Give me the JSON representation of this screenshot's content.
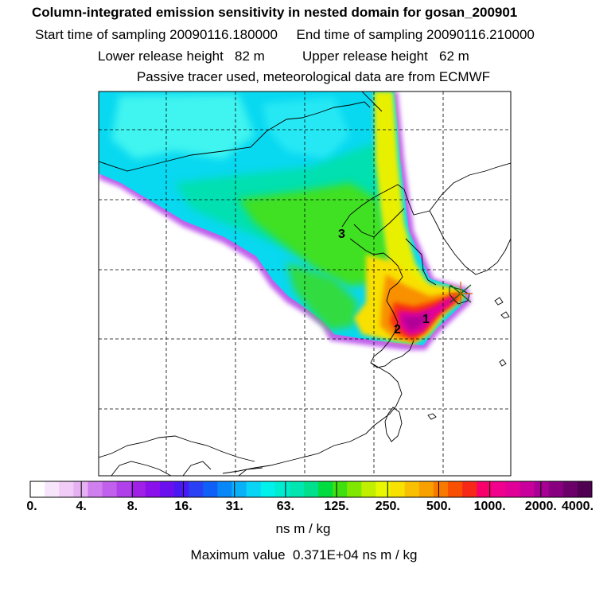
{
  "header": {
    "title": "Column-integrated emission sensitivity in nested domain for gosan_200901",
    "start_time": "Start time of sampling 20090116.180000     End time of sampling 20090116.210000",
    "release_height": "Lower release height   82 m          Upper release height   62 m",
    "tracer_info": "Passive tracer used, meteorological data are from ECMWF"
  },
  "map": {
    "labels": [
      "1",
      "2",
      "3"
    ],
    "grid": true,
    "release_marker": "star-marker"
  },
  "colorbar": {
    "colors": [
      "#ffffff",
      "#f7e6fb",
      "#f0ccf7",
      "#e6b1f3",
      "#cf7fee",
      "#c060ec",
      "#b040ea",
      "#a020e8",
      "#8a10ec",
      "#6a10ef",
      "#4a18f2",
      "#2a40f5",
      "#1060f7",
      "#0888f8",
      "#08b0f8",
      "#08d4f5",
      "#00f0ec",
      "#00ecd0",
      "#00e6b0",
      "#00e08c",
      "#00dc40",
      "#40e010",
      "#80e800",
      "#c0f000",
      "#e8f800",
      "#f8e000",
      "#f8c000",
      "#f8a000",
      "#f87800",
      "#f85000",
      "#f82818",
      "#f8006c",
      "#f0008c",
      "#e00098",
      "#c8009c",
      "#a80094",
      "#880080",
      "#6a0068",
      "#500050"
    ],
    "tick_labels": [
      "0.",
      "4.",
      "8.",
      "16.",
      "31.",
      "63.",
      "125.",
      "250.",
      "500.",
      "1000.",
      "2000.",
      "4000."
    ],
    "unit": "ns m / kg",
    "max_value_text": "Maximum value  0.371E+04 ns m / kg"
  }
}
